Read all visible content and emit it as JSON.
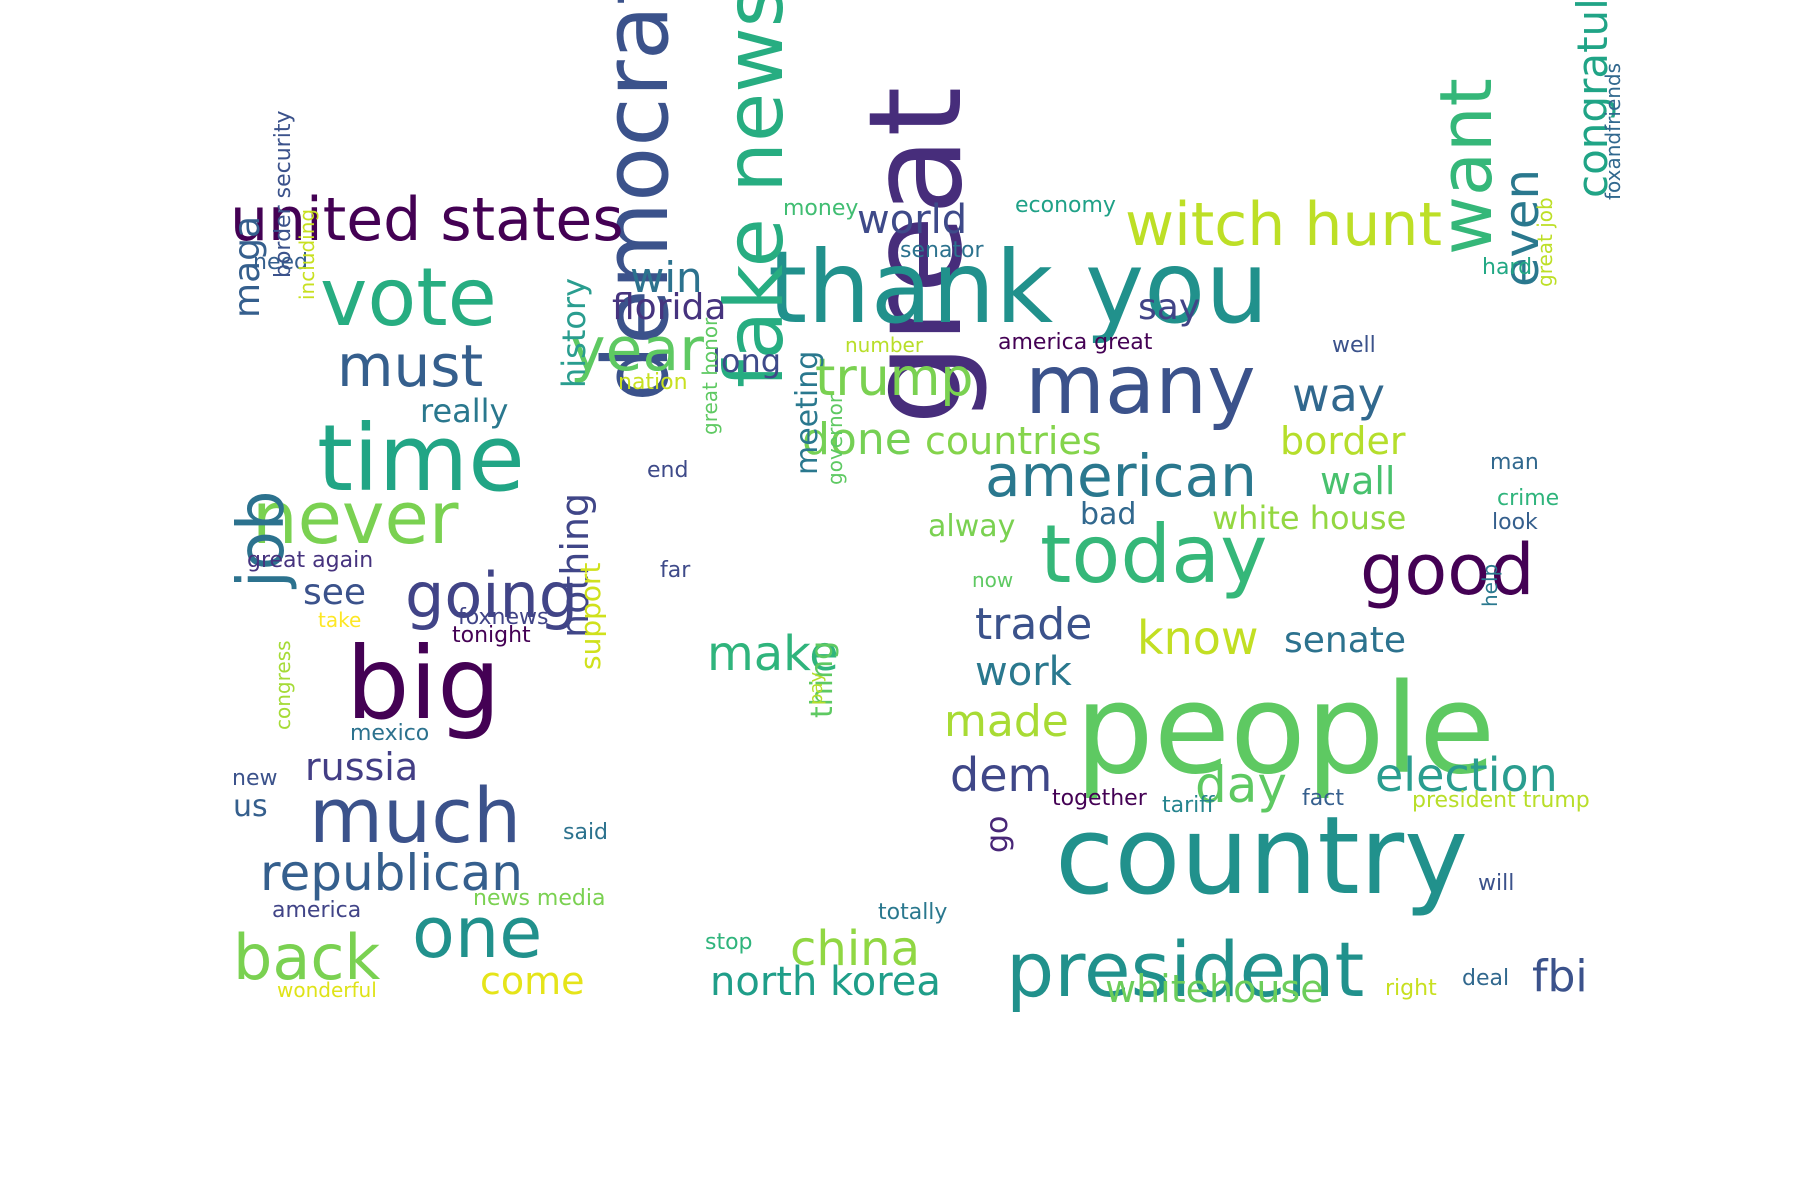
{
  "words": [
    {
      "text": "people",
      "color": "#5ec962"
    },
    {
      "text": "great",
      "color": "#472d7b",
      "rotated": true
    },
    {
      "text": "country",
      "color": "#21918c"
    },
    {
      "text": "thank you",
      "color": "#21918c"
    },
    {
      "text": "democrat",
      "color": "#3b528b",
      "rotated": true
    },
    {
      "text": "fake news",
      "color": "#27ad81",
      "rotated": true
    },
    {
      "text": "president",
      "color": "#21918c"
    },
    {
      "text": "many",
      "color": "#3b528b"
    },
    {
      "text": "today",
      "color": "#35b779"
    },
    {
      "text": "time",
      "color": "#21a585"
    },
    {
      "text": "big",
      "color": "#440154"
    },
    {
      "text": "vote",
      "color": "#27ad81"
    },
    {
      "text": "much",
      "color": "#3b528b"
    },
    {
      "text": "want",
      "color": "#35b779",
      "rotated": true
    },
    {
      "text": "never",
      "color": "#7ad151"
    },
    {
      "text": "job",
      "color": "#2c728e",
      "rotated": true
    },
    {
      "text": "good",
      "color": "#440154"
    },
    {
      "text": "one",
      "color": "#21918c"
    },
    {
      "text": "united states",
      "color": "#440154"
    },
    {
      "text": "american",
      "color": "#2a788e"
    },
    {
      "text": "back",
      "color": "#7ad151"
    },
    {
      "text": "witch hunt",
      "color": "#bddf26"
    },
    {
      "text": "going",
      "color": "#414487"
    },
    {
      "text": "must",
      "color": "#355f8d"
    },
    {
      "text": "republican",
      "color": "#355f8d"
    },
    {
      "text": "year",
      "color": "#5ec962"
    },
    {
      "text": "trump",
      "color": "#7ad151"
    },
    {
      "text": "congratulations",
      "color": "#20a486",
      "rotated": true
    },
    {
      "text": "even",
      "color": "#2a788e",
      "rotated": true
    },
    {
      "text": "election",
      "color": "#2a9d8f"
    },
    {
      "text": "make",
      "color": "#2fb47c"
    },
    {
      "text": "china",
      "color": "#90d743"
    },
    {
      "text": "day",
      "color": "#5ec962"
    },
    {
      "text": "know",
      "color": "#c2df23"
    },
    {
      "text": "north korea",
      "color": "#1f9e89"
    },
    {
      "text": "world",
      "color": "#3e4a89"
    },
    {
      "text": "win",
      "color": "#2c728e"
    },
    {
      "text": "way",
      "color": "#31688e"
    },
    {
      "text": "done",
      "color": "#75d054"
    },
    {
      "text": "dem",
      "color": "#3f4788"
    },
    {
      "text": "made",
      "color": "#a8db34"
    },
    {
      "text": "trade",
      "color": "#3b528b"
    },
    {
      "text": "work",
      "color": "#2a788e"
    },
    {
      "text": "whitehouse",
      "color": "#6ccd5a"
    },
    {
      "text": "fbi",
      "color": "#3b528b"
    },
    {
      "text": "come",
      "color": "#e5e419"
    },
    {
      "text": "maga",
      "color": "#355f8d",
      "rotated": true
    },
    {
      "text": "florida",
      "color": "#46337e"
    },
    {
      "text": "border",
      "color": "#b5de2b"
    },
    {
      "text": "countries",
      "color": "#84d44b"
    },
    {
      "text": "wall",
      "color": "#48c16e"
    },
    {
      "text": "senate",
      "color": "#2c728e"
    },
    {
      "text": "history",
      "color": "#2a9d8f",
      "rotated": true
    },
    {
      "text": "nothing",
      "color": "#404688",
      "rotated": true
    },
    {
      "text": "russia",
      "color": "#433e85"
    },
    {
      "text": "say",
      "color": "#414487"
    },
    {
      "text": "white house",
      "color": "#93d741"
    },
    {
      "text": "see",
      "color": "#3b528b"
    },
    {
      "text": "go",
      "color": "#482677",
      "rotated": true
    },
    {
      "text": "really",
      "color": "#2a788e"
    },
    {
      "text": "long",
      "color": "#3e4a89"
    },
    {
      "text": "meeting",
      "color": "#2a788e",
      "rotated": true
    },
    {
      "text": "thing",
      "color": "#5ec962",
      "rotated": true
    },
    {
      "text": "support",
      "color": "#d0e11c",
      "rotated": true
    },
    {
      "text": "alway",
      "color": "#7ad151"
    },
    {
      "text": "bad",
      "color": "#31688e"
    },
    {
      "text": "us",
      "color": "#355f8d"
    },
    {
      "text": "money",
      "color": "#40bd72"
    },
    {
      "text": "economy",
      "color": "#1fa187"
    },
    {
      "text": "senator",
      "color": "#2c728e"
    },
    {
      "text": "need",
      "color": "#355f8d"
    },
    {
      "text": "number",
      "color": "#b8de29"
    },
    {
      "text": "america great",
      "color": "#440154"
    },
    {
      "text": "hard",
      "color": "#22a884"
    },
    {
      "text": "well",
      "color": "#3b528b"
    },
    {
      "text": "foxandfriends",
      "color": "#31688e",
      "rotated": true
    },
    {
      "text": "great job",
      "color": "#bddf26",
      "rotated": true
    },
    {
      "text": "nation",
      "color": "#c8e020"
    },
    {
      "text": "border security",
      "color": "#3b528b",
      "rotated": true
    },
    {
      "text": "including",
      "color": "#c8e020",
      "rotated": true
    },
    {
      "text": "end",
      "color": "#3e4a89"
    },
    {
      "text": "great honor",
      "color": "#5ec962",
      "rotated": true
    },
    {
      "text": "governor",
      "color": "#5ec962",
      "rotated": true
    },
    {
      "text": "man",
      "color": "#31688e"
    },
    {
      "text": "crime",
      "color": "#2fb47c"
    },
    {
      "text": "look",
      "color": "#355f8d"
    },
    {
      "text": "great again",
      "color": "#46337e"
    },
    {
      "text": "far",
      "color": "#3e4a89"
    },
    {
      "text": "now",
      "color": "#5ec962"
    },
    {
      "text": "help",
      "color": "#2a788e",
      "rotated": true
    },
    {
      "text": "take",
      "color": "#fde725"
    },
    {
      "text": "foxnews",
      "color": "#414487"
    },
    {
      "text": "tonight",
      "color": "#440154"
    },
    {
      "text": "mexico",
      "color": "#2c728e"
    },
    {
      "text": "pay",
      "color": "#b5de2b",
      "rotated": true
    },
    {
      "text": "new",
      "color": "#3b528b"
    },
    {
      "text": "congress",
      "color": "#a5db36",
      "rotated": true
    },
    {
      "text": "together",
      "color": "#440154"
    },
    {
      "text": "tariff",
      "color": "#25848e"
    },
    {
      "text": "fact",
      "color": "#355f8d"
    },
    {
      "text": "president trump",
      "color": "#b8de29"
    },
    {
      "text": "said",
      "color": "#2c728e"
    },
    {
      "text": "news media",
      "color": "#7ad151"
    },
    {
      "text": "america",
      "color": "#414487"
    },
    {
      "text": "totally",
      "color": "#2a788e"
    },
    {
      "text": "will",
      "color": "#3b528b"
    },
    {
      "text": "stop",
      "color": "#2fb47c"
    },
    {
      "text": "deal",
      "color": "#31688e"
    },
    {
      "text": "right",
      "color": "#c8e020"
    },
    {
      "text": "wonderful",
      "color": "#dfe318"
    }
  ]
}
